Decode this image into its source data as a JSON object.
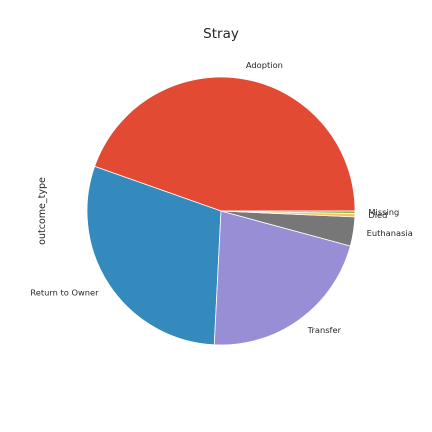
{
  "chart_data": {
    "type": "pie",
    "title": "Stray",
    "ylabel": "outcome_type",
    "start_angle_deg": 0,
    "direction": "counterclockwise",
    "slices": [
      {
        "label": "Adoption",
        "value": 44.6,
        "color": "#e24a33"
      },
      {
        "label": "Return to Owner",
        "value": 29.6,
        "color": "#348abd"
      },
      {
        "label": "Transfer",
        "value": 21.6,
        "color": "#988ed5"
      },
      {
        "label": "Euthanasia",
        "value": 3.5,
        "color": "#777777"
      },
      {
        "label": "Died",
        "value": 0.4,
        "color": "#fbc15e"
      },
      {
        "label": "Missing",
        "value": 0.3,
        "color": "#8eba42"
      }
    ]
  }
}
